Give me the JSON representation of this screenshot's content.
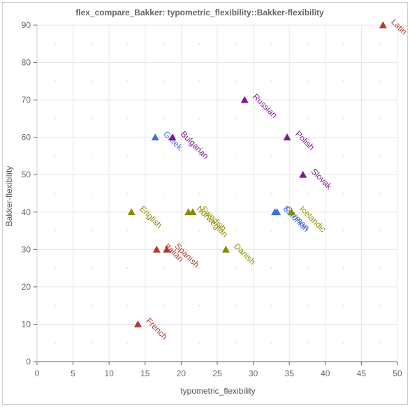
{
  "chart_data": {
    "type": "scatter",
    "title": "flex_compare_Bakker: typometric_flexibility::Bakker-flexibility",
    "xlabel": "typometric_flexibility",
    "ylabel": "Bakker-flexibility",
    "xlim": [
      0,
      50
    ],
    "ylim": [
      0,
      90
    ],
    "x_ticks": [
      "0",
      "5",
      "10",
      "15",
      "20",
      "25",
      "30",
      "35",
      "40",
      "45",
      "50"
    ],
    "y_ticks": [
      "0",
      "10",
      "20",
      "30",
      "40",
      "50",
      "60",
      "70",
      "80",
      "90"
    ],
    "grid": true,
    "colors": {
      "red": "#b03a2e",
      "purple": "#7d1a8c",
      "blue": "#3f6fd8",
      "olive": "#8a8a00"
    },
    "points": [
      {
        "label": "Latin",
        "x": 48.0,
        "y": 90,
        "color": "red"
      },
      {
        "label": "Russian",
        "x": 28.8,
        "y": 70,
        "color": "purple"
      },
      {
        "label": "Greek",
        "x": 16.4,
        "y": 60,
        "color": "blue"
      },
      {
        "label": "Bulgarian",
        "x": 18.8,
        "y": 60,
        "color": "purple"
      },
      {
        "label": "Polish",
        "x": 34.7,
        "y": 60,
        "color": "purple"
      },
      {
        "label": "Slovak",
        "x": 36.9,
        "y": 50,
        "color": "purple"
      },
      {
        "label": "English",
        "x": 13.1,
        "y": 40,
        "color": "olive"
      },
      {
        "label": "Norwegian",
        "x": 21.0,
        "y": 40,
        "color": "olive"
      },
      {
        "label": "Swedish",
        "x": 21.6,
        "y": 40,
        "color": "olive"
      },
      {
        "label": "Estonian",
        "x": 33.0,
        "y": 40,
        "color": "blue"
      },
      {
        "label": "German",
        "x": 33.3,
        "y": 40,
        "color": "blue"
      },
      {
        "label": "Icelandic",
        "x": 35.3,
        "y": 40,
        "color": "olive"
      },
      {
        "label": "Italian",
        "x": 16.6,
        "y": 30,
        "color": "red"
      },
      {
        "label": "Spanish",
        "x": 18.0,
        "y": 30,
        "color": "red"
      },
      {
        "label": "Danish",
        "x": 26.2,
        "y": 30,
        "color": "olive"
      },
      {
        "label": "French",
        "x": 14.0,
        "y": 10,
        "color": "red"
      }
    ]
  }
}
